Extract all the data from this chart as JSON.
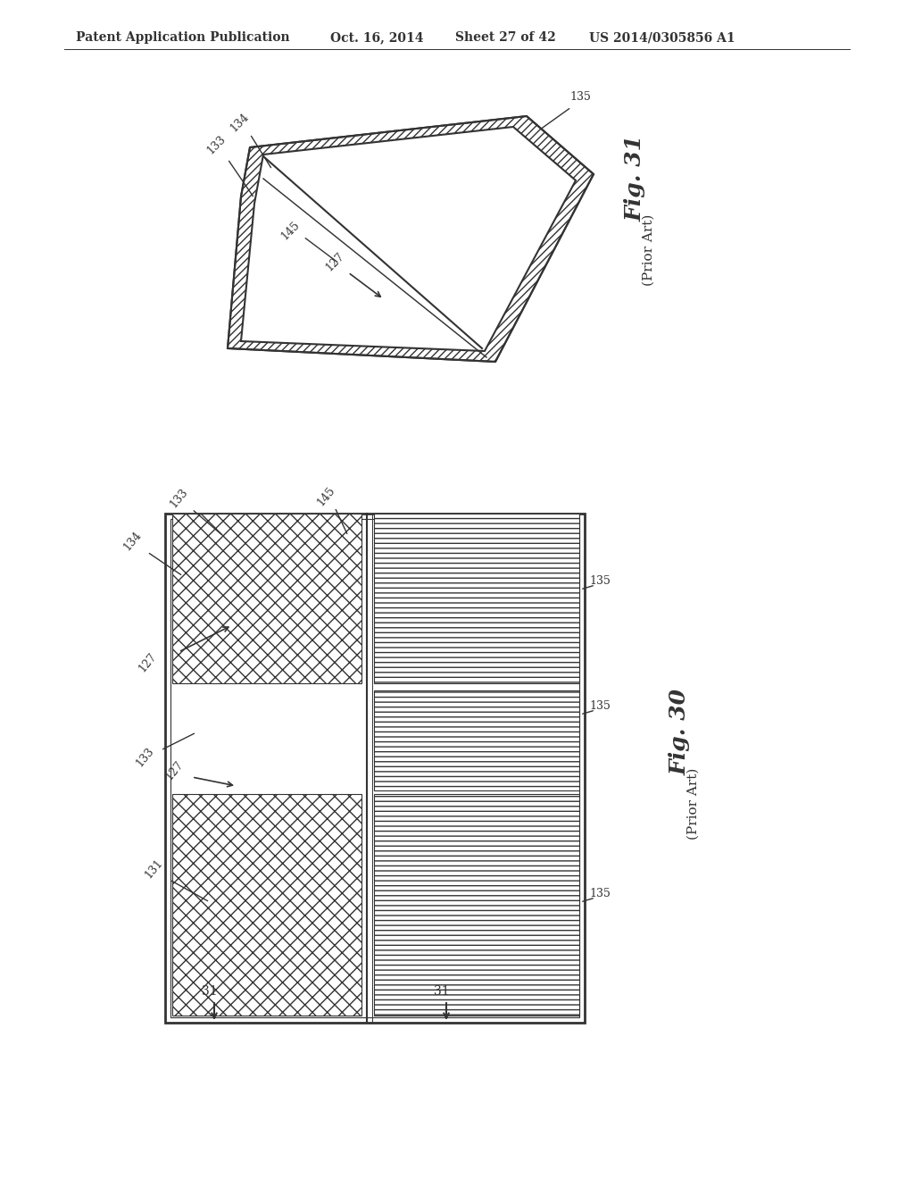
{
  "bg_color": "#ffffff",
  "header_text": "Patent Application Publication",
  "header_date": "Oct. 16, 2014",
  "header_sheet": "Sheet 27 of 42",
  "header_patent": "US 2014/0305856 A1",
  "fig31_label": "Fig. 31",
  "fig31_sub": "(Prior Art)",
  "fig30_label": "Fig. 30",
  "fig30_sub": "(Prior Art)",
  "line_color": "#333333",
  "hatch_color": "#555555",
  "fill_color": "#f5f5f5"
}
